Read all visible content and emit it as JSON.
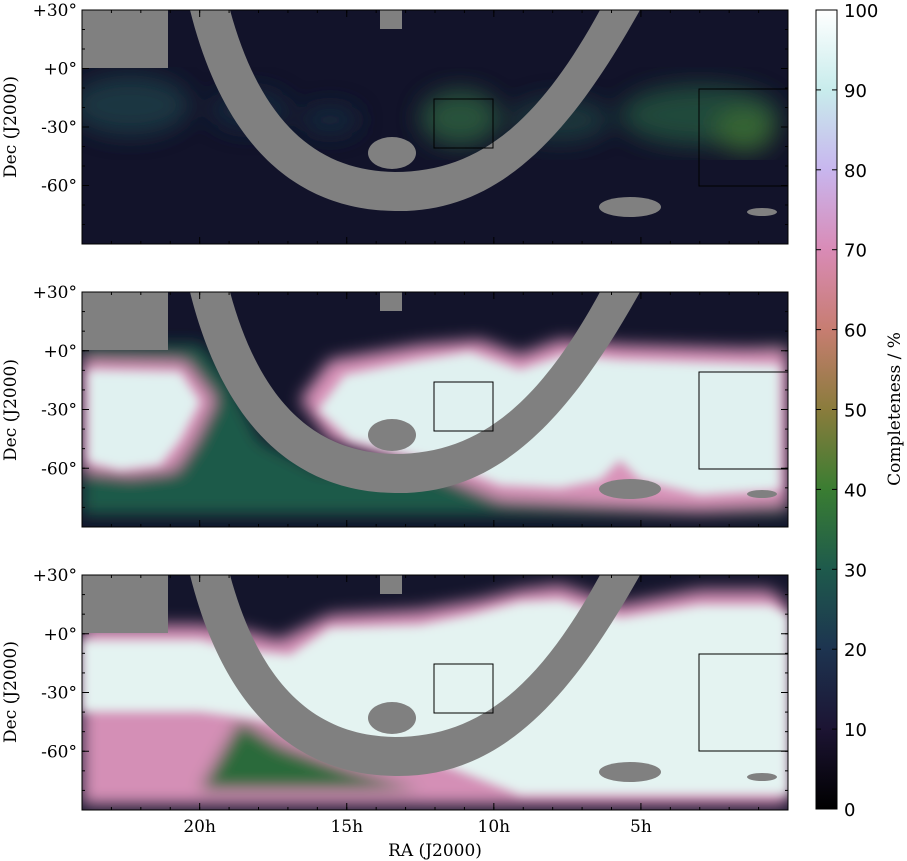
{
  "chart_data": {
    "type": "heatmap",
    "panels": [
      {
        "name": "panel-1",
        "ylabel": "Dec (J2000)",
        "level": "low"
      },
      {
        "name": "panel-2",
        "ylabel": "Dec (J2000)",
        "level": "mid"
      },
      {
        "name": "panel-3",
        "ylabel": "Dec (J2000)",
        "level": "high"
      }
    ],
    "xlabel": "RA (J2000)",
    "x_ticks": [
      {
        "value": 20,
        "label": "20h"
      },
      {
        "value": 15,
        "label": "15h"
      },
      {
        "value": 10,
        "label": "10h"
      },
      {
        "value": 5,
        "label": "5h"
      }
    ],
    "y_ticks": [
      {
        "value": 30,
        "label": "+30°"
      },
      {
        "value": 0,
        "label": "+0°"
      },
      {
        "value": -30,
        "label": "-30°"
      },
      {
        "value": -60,
        "label": "-60°"
      }
    ],
    "ra_range": [
      24,
      0
    ],
    "dec_range": [
      -90,
      30
    ],
    "colorbar": {
      "label": "Completeness / %",
      "range": [
        0,
        100
      ],
      "ticks": [
        0,
        10,
        20,
        30,
        40,
        50,
        60,
        70,
        80,
        90,
        100
      ]
    },
    "boxes": [
      {
        "ra": [
          12,
          9
        ],
        "dec": [
          -40,
          -15
        ]
      },
      {
        "ra": [
          2,
          -2
        ],
        "dec": [
          -60,
          -10
        ]
      }
    ],
    "colors": {
      "mask": "#808080",
      "frame": "#000000",
      "background": "#ffffff"
    }
  }
}
